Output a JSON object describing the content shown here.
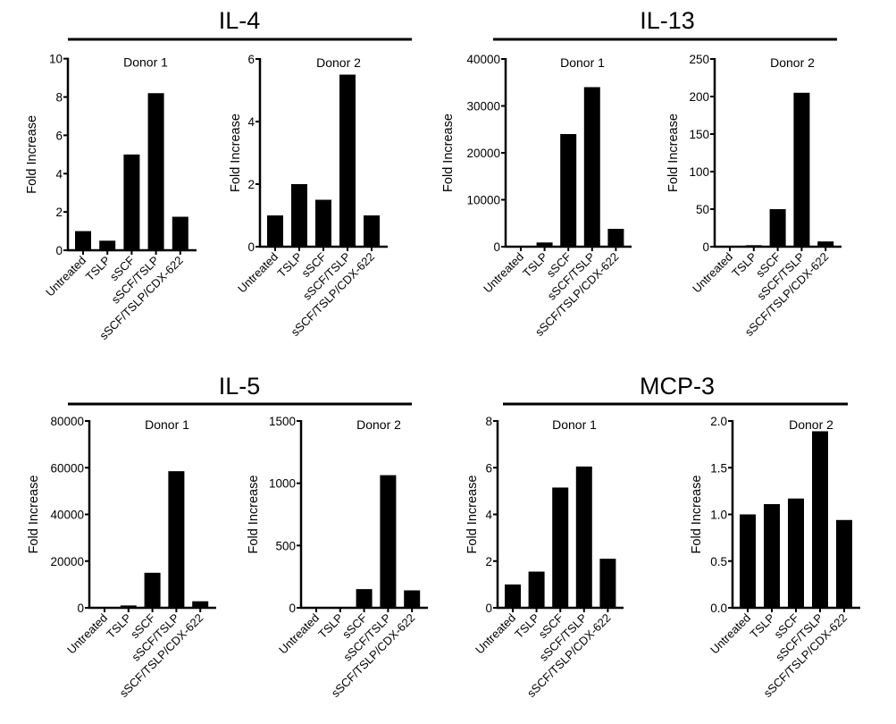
{
  "chart_data": [
    {
      "type": "bar",
      "title": "IL-4",
      "subtitle": "Donor 1",
      "ylabel": "Fold Increase",
      "xlabel": "",
      "categories": [
        "Untreated",
        "TSLP",
        "sSCF",
        "sSCF/TSLP",
        "sSCF/TSLP/CDX-622"
      ],
      "values": [
        1,
        0.5,
        5,
        8.2,
        1.75
      ],
      "ylim": [
        0,
        10
      ],
      "yticks": [
        "0",
        "2",
        "4",
        "6",
        "8",
        "10"
      ],
      "bar_color": "#000000",
      "grid": false
    },
    {
      "type": "bar",
      "title": "IL-4",
      "subtitle": "Donor 2",
      "ylabel": "Fold Increase",
      "xlabel": "",
      "categories": [
        "Untreated",
        "TSLP",
        "sSCF",
        "sSCF/TSLP",
        "sSCF/TSLP/CDX-622"
      ],
      "values": [
        1,
        2,
        1.5,
        5.5,
        1
      ],
      "ylim": [
        0,
        6
      ],
      "yticks": [
        "0",
        "2",
        "4",
        "6"
      ],
      "bar_color": "#000000",
      "grid": false
    },
    {
      "type": "bar",
      "title": "IL-13",
      "subtitle": "Donor 1",
      "ylabel": "Fold Increase",
      "xlabel": "",
      "categories": [
        "Untreated",
        "TSLP",
        "sSCF",
        "sSCF/TSLP",
        "sSCF/TSLP/CDX-622"
      ],
      "values": [
        1,
        900,
        24000,
        34000,
        3800
      ],
      "ylim": [
        0,
        40000
      ],
      "yticks": [
        "0",
        "10000",
        "20000",
        "30000",
        "40000"
      ],
      "bar_color": "#000000",
      "grid": false
    },
    {
      "type": "bar",
      "title": "IL-13",
      "subtitle": "Donor 2",
      "ylabel": "Fold Increase",
      "xlabel": "",
      "categories": [
        "Untreated",
        "TSLP",
        "sSCF",
        "sSCF/TSLP",
        "sSCF/TSLP/CDX-622"
      ],
      "values": [
        1,
        2,
        50,
        205,
        7
      ],
      "ylim": [
        0,
        250
      ],
      "yticks": [
        "0",
        "50",
        "100",
        "150",
        "200",
        "250"
      ],
      "bar_color": "#000000",
      "grid": false
    },
    {
      "type": "bar",
      "title": "IL-5",
      "subtitle": "Donor 1",
      "ylabel": "Fold Increase",
      "xlabel": "",
      "categories": [
        "Untreated",
        "TSLP",
        "sSCF",
        "sSCF/TSLP",
        "sSCF/TSLP/CDX-622"
      ],
      "values": [
        1,
        1000,
        15000,
        58500,
        2800
      ],
      "ylim": [
        0,
        80000
      ],
      "yticks": [
        "0",
        "20000",
        "40000",
        "60000",
        "80000"
      ],
      "bar_color": "#000000",
      "grid": false
    },
    {
      "type": "bar",
      "title": "IL-5",
      "subtitle": "Donor 2",
      "ylabel": "Fold Increase",
      "xlabel": "",
      "categories": [
        "Untreated",
        "TSLP",
        "sSCF",
        "sSCF/TSLP",
        "sSCF/TSLP/CDX-622"
      ],
      "values": [
        1,
        5,
        150,
        1065,
        140
      ],
      "ylim": [
        0,
        1500
      ],
      "yticks": [
        "0",
        "500",
        "1000",
        "1500"
      ],
      "bar_color": "#000000",
      "grid": false
    },
    {
      "type": "bar",
      "title": "MCP-3",
      "subtitle": "Donor 1",
      "ylabel": "Fold Increase",
      "xlabel": "",
      "categories": [
        "Untreated",
        "TSLP",
        "sSCF",
        "sSCF/TSLP",
        "sSCF/TSLP/CDX-622"
      ],
      "values": [
        1,
        1.55,
        5.15,
        6.05,
        2.1
      ],
      "ylim": [
        0,
        8
      ],
      "yticks": [
        "0",
        "2",
        "4",
        "6",
        "8"
      ],
      "bar_color": "#000000",
      "grid": false
    },
    {
      "type": "bar",
      "title": "MCP-3",
      "subtitle": "Donor 2",
      "ylabel": "Fold Increase",
      "xlabel": "",
      "categories": [
        "Untreated",
        "TSLP",
        "sSCF",
        "sSCF/TSLP",
        "sSCF/TSLP/CDX-622"
      ],
      "values": [
        1,
        1.11,
        1.17,
        1.89,
        0.94
      ],
      "ylim": [
        0,
        2
      ],
      "yticks": [
        "0.0",
        "0.5",
        "1.0",
        "1.5",
        "2.0"
      ],
      "bar_color": "#000000",
      "grid": false
    }
  ]
}
